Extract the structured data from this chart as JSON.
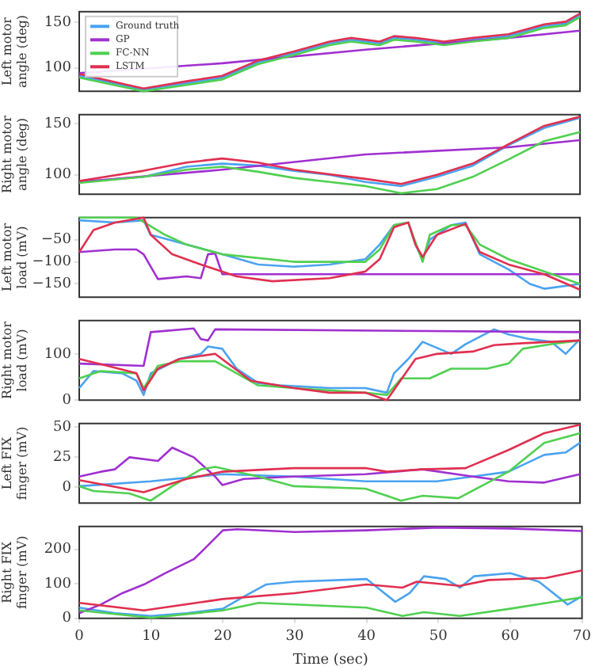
{
  "chart_data": [
    {
      "type": "line",
      "ylabel": "Left motor\nangle (deg)",
      "xlim": [
        0,
        70
      ],
      "ylim": [
        74,
        162
      ],
      "yticks": [
        100,
        150
      ],
      "tick_labels": "y",
      "grid": false,
      "legend": "top left",
      "marker": "none",
      "line_style": "solid",
      "series": [
        {
          "name": "Ground truth",
          "color": "#4aa3f0",
          "x": [
            0,
            9,
            15,
            20,
            25,
            30,
            35,
            38,
            42,
            44,
            47,
            51,
            55,
            60,
            65,
            68,
            70
          ],
          "values": [
            91,
            76,
            83,
            89,
            106,
            116,
            127,
            131,
            127,
            133,
            131,
            127,
            131,
            135,
            146,
            149,
            158
          ]
        },
        {
          "name": "GP",
          "color": "#a030d0",
          "x": [
            0,
            20,
            40,
            60,
            70
          ],
          "values": [
            94,
            105,
            120,
            133,
            141
          ]
        },
        {
          "name": "FC-NN",
          "color": "#50d050",
          "x": [
            0,
            9,
            15,
            20,
            25,
            30,
            35,
            38,
            42,
            44,
            47,
            51,
            55,
            60,
            65,
            68,
            70
          ],
          "values": [
            89,
            74,
            81,
            87,
            104,
            114,
            125,
            129,
            125,
            131,
            129,
            125,
            129,
            133,
            144,
            147,
            156
          ]
        },
        {
          "name": "LSTM",
          "color": "#e03050",
          "x": [
            0,
            9,
            15,
            20,
            25,
            30,
            35,
            38,
            42,
            44,
            47,
            51,
            55,
            60,
            65,
            68,
            70
          ],
          "values": [
            93,
            77,
            85,
            91,
            108,
            118,
            129,
            133,
            129,
            135,
            133,
            129,
            133,
            137,
            148,
            151,
            160
          ]
        }
      ]
    },
    {
      "type": "line",
      "ylabel": "Right motor\nangle (deg)",
      "xlim": [
        0,
        70
      ],
      "ylim": [
        81,
        159
      ],
      "yticks": [
        100,
        150
      ],
      "tick_labels": "y",
      "grid": false,
      "marker": "none",
      "line_style": "solid",
      "series": [
        {
          "color": "#4aa3f0",
          "x": [
            0,
            9,
            15,
            20,
            25,
            30,
            35,
            40,
            45,
            50,
            55,
            60,
            65,
            70
          ],
          "values": [
            93,
            98,
            108,
            111,
            109,
            104,
            100,
            93,
            89,
            98,
            109,
            129,
            146,
            156
          ]
        },
        {
          "color": "#a030d0",
          "x": [
            0,
            20,
            40,
            60,
            70
          ],
          "values": [
            93,
            105,
            120,
            127,
            134
          ]
        },
        {
          "color": "#50d050",
          "x": [
            0,
            9,
            15,
            20,
            25,
            30,
            35,
            40,
            45,
            50,
            55,
            60,
            65,
            70
          ],
          "values": [
            92,
            98,
            105,
            108,
            103,
            97,
            93,
            89,
            82,
            86,
            98,
            115,
            133,
            142
          ]
        },
        {
          "color": "#e03050",
          "x": [
            0,
            9,
            15,
            20,
            25,
            30,
            40,
            45,
            50,
            55,
            60,
            65,
            70
          ],
          "values": [
            94,
            104,
            112,
            116,
            112,
            105,
            96,
            91,
            100,
            111,
            130,
            148,
            157
          ]
        }
      ]
    },
    {
      "type": "line",
      "ylabel": "Left motor\nload (mV)",
      "xlim": [
        0,
        70
      ],
      "ylim": [
        -180,
        0
      ],
      "yticks": [
        -50,
        -100,
        -150
      ],
      "tick_labels": "y",
      "grid": false,
      "marker": "none",
      "line_style": "solid",
      "series": [
        {
          "color": "#4aa3f0",
          "x": [
            0,
            5,
            9,
            10,
            15,
            20,
            25,
            30,
            35,
            40,
            42,
            44,
            46,
            47,
            48,
            49,
            52,
            54,
            56,
            60,
            63,
            65,
            70
          ],
          "values": [
            -6,
            -11,
            -6,
            -39,
            -61,
            -83,
            -106,
            -111,
            -106,
            -94,
            -61,
            -17,
            -11,
            -61,
            -94,
            -50,
            -17,
            -11,
            -83,
            -117,
            -150,
            -161,
            -150
          ]
        },
        {
          "color": "#a030d0",
          "x": [
            0,
            5,
            8,
            9,
            11,
            15,
            17,
            18,
            19,
            20,
            30,
            70
          ],
          "values": [
            -78,
            -72,
            -72,
            -83,
            -139,
            -133,
            -137,
            -83,
            -81,
            -128,
            -128,
            -128
          ]
        },
        {
          "color": "#50d050",
          "x": [
            0,
            8,
            12,
            15,
            20,
            30,
            40,
            42,
            44,
            46,
            48,
            49,
            52,
            54,
            56,
            60,
            65,
            70
          ],
          "values": [
            0,
            0,
            -39,
            -61,
            -83,
            -100,
            -100,
            -72,
            -17,
            -11,
            -100,
            -39,
            -17,
            -17,
            -61,
            -94,
            -122,
            -150
          ]
        },
        {
          "color": "#e03050",
          "x": [
            0,
            2,
            5,
            9,
            10,
            13,
            17,
            22,
            27,
            35,
            40,
            42,
            44,
            46,
            47,
            48,
            50,
            54,
            56,
            60,
            65,
            70
          ],
          "values": [
            -78,
            -28,
            -11,
            0,
            -39,
            -83,
            -106,
            -133,
            -144,
            -137,
            -122,
            -94,
            -22,
            -11,
            -61,
            -89,
            -39,
            -14,
            -78,
            -106,
            -128,
            -163
          ]
        }
      ]
    },
    {
      "type": "line",
      "ylabel": "Right motor\nload (mV)",
      "xlim": [
        0,
        70
      ],
      "ylim": [
        0,
        172
      ],
      "yticks": [
        0,
        100
      ],
      "tick_labels": "y",
      "grid": false,
      "marker": "none",
      "line_style": "solid",
      "series": [
        {
          "color": "#4aa3f0",
          "x": [
            0,
            2,
            6,
            8,
            9,
            10,
            14,
            17,
            18,
            20,
            22,
            25,
            28,
            35,
            40,
            43,
            44,
            46,
            48,
            52,
            54,
            58,
            60,
            63,
            66,
            68,
            70
          ],
          "values": [
            26,
            63,
            58,
            42,
            11,
            58,
            89,
            100,
            116,
            111,
            68,
            37,
            32,
            26,
            26,
            16,
            58,
            89,
            126,
            100,
            121,
            153,
            142,
            132,
            126,
            100,
            132
          ]
        },
        {
          "color": "#a030d0",
          "x": [
            0,
            9,
            10,
            16,
            17,
            18,
            19,
            70
          ],
          "values": [
            79,
            74,
            147,
            155,
            132,
            129,
            153,
            147
          ]
        },
        {
          "color": "#50d050",
          "x": [
            0,
            3,
            8,
            9,
            11,
            14,
            19,
            25,
            30,
            40,
            43,
            45,
            49,
            52,
            57,
            60,
            62,
            66,
            70
          ],
          "values": [
            47,
            63,
            58,
            26,
            74,
            84,
            84,
            32,
            26,
            16,
            11,
            47,
            47,
            68,
            68,
            79,
            111,
            121,
            129
          ]
        },
        {
          "color": "#e03050",
          "x": [
            0,
            4,
            8,
            9,
            11,
            14,
            19,
            24,
            30,
            35,
            40,
            43,
            47,
            50,
            55,
            58,
            62,
            70
          ],
          "values": [
            89,
            74,
            58,
            21,
            68,
            89,
            100,
            42,
            26,
            16,
            16,
            0,
            89,
            100,
            105,
            119,
            123,
            129
          ]
        }
      ]
    },
    {
      "type": "line",
      "ylabel": "Left FIX\nfinger (mV)",
      "xlim": [
        0,
        70
      ],
      "ylim": [
        -13,
        53
      ],
      "yticks": [
        0,
        25,
        50
      ],
      "tick_labels": "y",
      "grid": false,
      "marker": "none",
      "line_style": "solid",
      "series": [
        {
          "color": "#4aa3f0",
          "x": [
            0,
            10,
            20,
            30,
            40,
            50,
            55,
            60,
            65,
            68,
            70
          ],
          "values": [
            1,
            5,
            11,
            9,
            5,
            5,
            9,
            13,
            27,
            29,
            37
          ]
        },
        {
          "color": "#a030d0",
          "x": [
            0,
            3,
            5,
            7,
            11,
            13,
            16,
            19,
            20,
            23,
            30,
            40,
            48,
            55,
            60,
            65,
            70
          ],
          "values": [
            9,
            13,
            15,
            25,
            22,
            33,
            25,
            9,
            2,
            7,
            9,
            11,
            15,
            9,
            5,
            4,
            11
          ]
        },
        {
          "color": "#50d050",
          "x": [
            0,
            2,
            7,
            10,
            13,
            17,
            19,
            25,
            30,
            40,
            43,
            45,
            48,
            53,
            60,
            65,
            70
          ],
          "values": [
            1,
            -3,
            -5,
            -11,
            1,
            15,
            17,
            9,
            1,
            -1,
            -7,
            -11,
            -7,
            -9,
            13,
            37,
            45
          ]
        },
        {
          "color": "#e03050",
          "x": [
            0,
            9,
            15,
            20,
            30,
            40,
            43,
            48,
            54,
            60,
            65,
            70
          ],
          "values": [
            6,
            -4,
            7,
            13,
            16,
            16,
            13,
            15,
            16,
            31,
            45,
            52
          ]
        }
      ]
    },
    {
      "type": "line",
      "ylabel": "Right FIX\nfinger (mV)",
      "xlabel": "Time (sec)",
      "xlim": [
        0,
        70
      ],
      "xticks": [
        0,
        10,
        20,
        30,
        40,
        50,
        60,
        70
      ],
      "ylim": [
        0,
        266
      ],
      "yticks": [
        0,
        100,
        200
      ],
      "grid": false,
      "marker": "none",
      "line_style": "solid",
      "series": [
        {
          "color": "#4aa3f0",
          "x": [
            0,
            5,
            10,
            15,
            20,
            23,
            26,
            30,
            40,
            42,
            44,
            46,
            48,
            51,
            53,
            55,
            60,
            64,
            68,
            70
          ],
          "values": [
            31,
            15,
            7,
            15,
            28,
            64,
            98,
            106,
            114,
            81,
            48,
            73,
            122,
            114,
            89,
            122,
            131,
            106,
            40,
            64
          ]
        },
        {
          "color": "#a030d0",
          "x": [
            0,
            3,
            6,
            9,
            12,
            16,
            18,
            20,
            22,
            30,
            40,
            50,
            60,
            70
          ],
          "values": [
            15,
            40,
            73,
            98,
            131,
            172,
            213,
            255,
            258,
            250,
            255,
            263,
            260,
            253
          ]
        },
        {
          "color": "#50d050",
          "x": [
            0,
            10,
            20,
            25,
            40,
            45,
            48,
            53,
            60,
            70
          ],
          "values": [
            23,
            2,
            23,
            45,
            31,
            7,
            18,
            7,
            28,
            61
          ]
        },
        {
          "color": "#e03050",
          "x": [
            0,
            9,
            20,
            30,
            40,
            45,
            47,
            53,
            57,
            65,
            70
          ],
          "values": [
            45,
            23,
            56,
            73,
            98,
            89,
            106,
            94,
            111,
            117,
            139
          ]
        }
      ]
    }
  ]
}
